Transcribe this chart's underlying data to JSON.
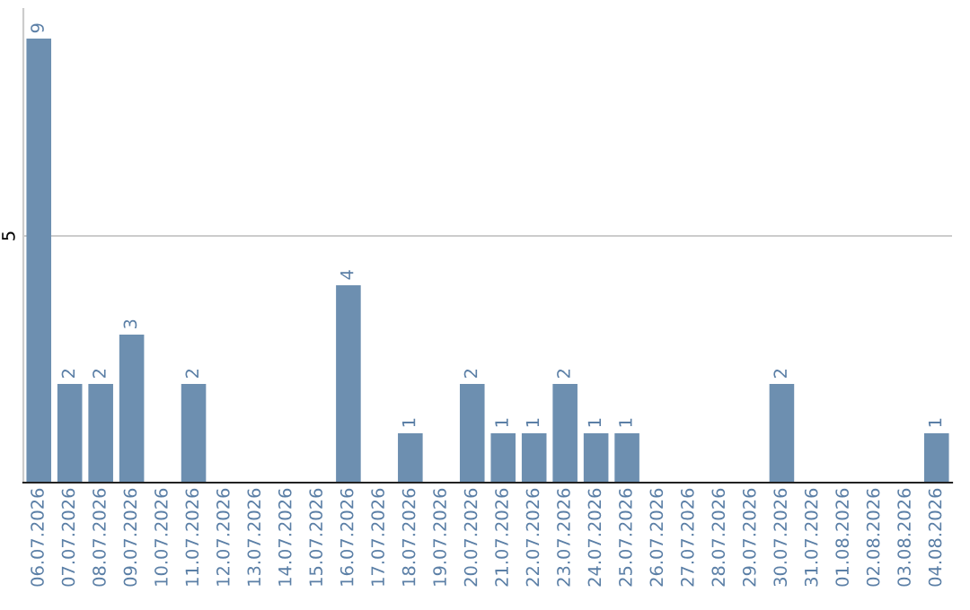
{
  "chart_data": {
    "type": "bar",
    "categories": [
      "06.07.2026",
      "07.07.2026",
      "08.07.2026",
      "09.07.2026",
      "10.07.2026",
      "11.07.2026",
      "12.07.2026",
      "13.07.2026",
      "14.07.2026",
      "15.07.2026",
      "16.07.2026",
      "17.07.2026",
      "18.07.2026",
      "19.07.2026",
      "20.07.2026",
      "21.07.2026",
      "22.07.2026",
      "23.07.2026",
      "24.07.2026",
      "25.07.2026",
      "26.07.2026",
      "27.07.2026",
      "28.07.2026",
      "29.07.2026",
      "30.07.2026",
      "31.07.2026",
      "01.08.2026",
      "02.08.2026",
      "03.08.2026",
      "04.08.2026"
    ],
    "values": [
      9,
      2,
      2,
      3,
      0,
      2,
      0,
      0,
      0,
      0,
      4,
      0,
      1,
      0,
      2,
      1,
      1,
      2,
      1,
      1,
      0,
      0,
      0,
      0,
      2,
      0,
      0,
      0,
      0,
      1
    ],
    "value_labels": [
      "9",
      "2",
      "2",
      "3",
      null,
      "2",
      null,
      null,
      null,
      null,
      "4",
      null,
      "1",
      null,
      "2",
      "1",
      "1",
      "2",
      "1",
      "1",
      null,
      null,
      null,
      null,
      "2",
      null,
      null,
      null,
      null,
      "1"
    ],
    "color": "#6d8fb0",
    "ylim": [
      0,
      9.6
    ],
    "yticks": [
      5
    ],
    "grid": "y"
  }
}
